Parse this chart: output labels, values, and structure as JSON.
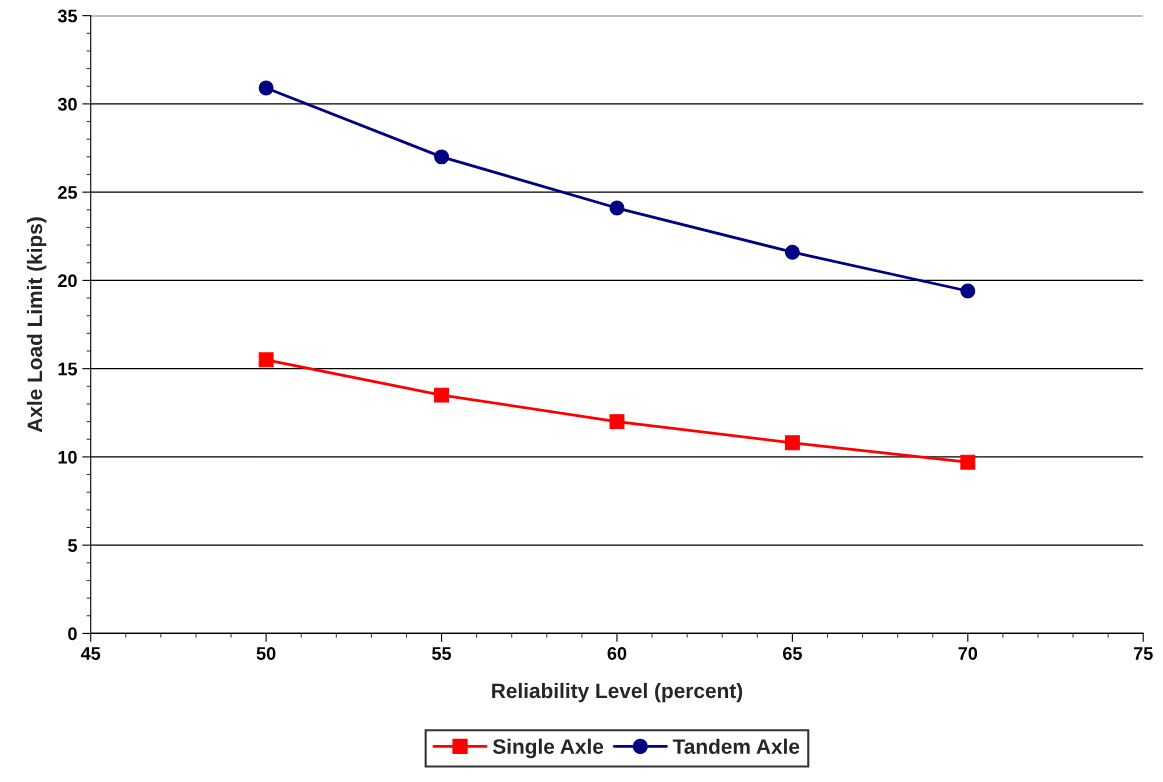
{
  "chart_data": {
    "type": "line",
    "xlabel": "Reliability Level (percent)",
    "ylabel": "Axle Load Limit (kips)",
    "x": [
      50,
      55,
      60,
      65,
      70
    ],
    "series": [
      {
        "name": "Single Axle",
        "color": "#ff0000",
        "marker": "square",
        "values": [
          15.5,
          13.5,
          12.0,
          10.8,
          9.7
        ]
      },
      {
        "name": "Tandem Axle",
        "color": "#000080",
        "marker": "circle",
        "values": [
          30.9,
          27.0,
          24.1,
          21.6,
          19.4
        ]
      }
    ],
    "xlim": [
      45,
      75
    ],
    "xticks": [
      45,
      50,
      55,
      60,
      65,
      70,
      75
    ],
    "ylim": [
      0,
      35
    ],
    "yticks": [
      0,
      5,
      10,
      15,
      20,
      25,
      30,
      35
    ],
    "grid": "y",
    "legend": "bottom",
    "line_style": "solid"
  }
}
